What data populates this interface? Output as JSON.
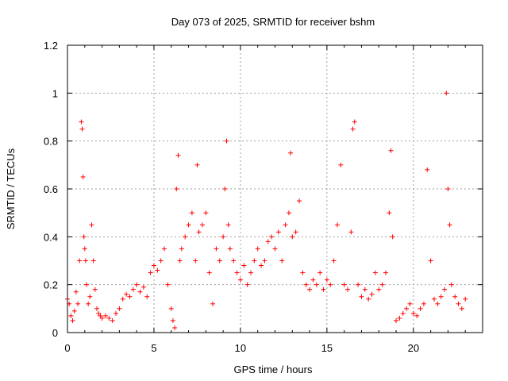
{
  "chart_data": {
    "type": "scatter",
    "title": "Day 073 of 2025, SRMTID for receiver bshm",
    "xlabel": "GPS time / hours",
    "ylabel": "SRMTID / TECUs",
    "xlim": [
      0,
      24
    ],
    "ylim": [
      0,
      1.2
    ],
    "xticks": [
      0,
      5,
      10,
      15,
      20
    ],
    "xtick_labels": [
      "0",
      "5",
      "10",
      "15",
      "20"
    ],
    "yticks": [
      0,
      0.2,
      0.4,
      0.6,
      0.8,
      1.0,
      1.2
    ],
    "ytick_labels": [
      "0",
      "0.2",
      "0.4",
      "0.6",
      "0.8",
      "1",
      "1.2"
    ],
    "grid": true,
    "marker": "plus",
    "color": "#ff0000",
    "series": [
      {
        "name": "SRMTID",
        "x": [
          0.0,
          0.1,
          0.2,
          0.3,
          0.4,
          0.5,
          0.6,
          0.7,
          0.8,
          0.85,
          0.9,
          0.95,
          1.0,
          1.05,
          1.1,
          1.2,
          1.3,
          1.4,
          1.5,
          1.6,
          1.7,
          1.8,
          1.9,
          2.0,
          2.2,
          2.4,
          2.6,
          2.8,
          3.0,
          3.2,
          3.4,
          3.6,
          3.8,
          4.0,
          4.2,
          4.4,
          4.6,
          4.8,
          5.0,
          5.2,
          5.4,
          5.6,
          5.8,
          6.0,
          6.1,
          6.2,
          6.3,
          6.4,
          6.5,
          6.6,
          6.8,
          7.0,
          7.2,
          7.4,
          7.5,
          7.6,
          7.8,
          8.0,
          8.2,
          8.4,
          8.6,
          8.8,
          9.0,
          9.1,
          9.2,
          9.3,
          9.4,
          9.6,
          9.8,
          10.0,
          10.2,
          10.4,
          10.6,
          10.8,
          11.0,
          11.2,
          11.4,
          11.6,
          11.8,
          12.0,
          12.2,
          12.4,
          12.6,
          12.8,
          12.9,
          13.0,
          13.2,
          13.4,
          13.6,
          13.8,
          14.0,
          14.2,
          14.4,
          14.6,
          14.8,
          15.0,
          15.2,
          15.4,
          15.6,
          15.8,
          16.0,
          16.2,
          16.4,
          16.5,
          16.6,
          16.8,
          17.0,
          17.2,
          17.4,
          17.6,
          17.8,
          18.0,
          18.2,
          18.4,
          18.6,
          18.7,
          18.8,
          19.0,
          19.2,
          19.4,
          19.6,
          19.8,
          20.0,
          20.2,
          20.4,
          20.6,
          20.8,
          21.0,
          21.2,
          21.4,
          21.6,
          21.8,
          21.9,
          22.0,
          22.1,
          22.2,
          22.4,
          22.6,
          22.8,
          23.0
        ],
        "y": [
          0.14,
          0.12,
          0.07,
          0.05,
          0.09,
          0.17,
          0.12,
          0.3,
          0.88,
          0.85,
          0.65,
          0.4,
          0.35,
          0.3,
          0.2,
          0.12,
          0.15,
          0.45,
          0.3,
          0.18,
          0.1,
          0.08,
          0.07,
          0.06,
          0.07,
          0.06,
          0.05,
          0.08,
          0.1,
          0.14,
          0.16,
          0.15,
          0.18,
          0.2,
          0.17,
          0.19,
          0.15,
          0.25,
          0.28,
          0.26,
          0.3,
          0.35,
          0.2,
          0.1,
          0.05,
          0.02,
          0.6,
          0.74,
          0.3,
          0.35,
          0.4,
          0.45,
          0.5,
          0.3,
          0.7,
          0.42,
          0.45,
          0.5,
          0.25,
          0.12,
          0.35,
          0.3,
          0.4,
          0.6,
          0.8,
          0.45,
          0.35,
          0.3,
          0.25,
          0.22,
          0.28,
          0.2,
          0.25,
          0.3,
          0.35,
          0.28,
          0.3,
          0.38,
          0.4,
          0.35,
          0.42,
          0.3,
          0.45,
          0.5,
          0.75,
          0.4,
          0.42,
          0.55,
          0.25,
          0.2,
          0.18,
          0.22,
          0.2,
          0.25,
          0.18,
          0.22,
          0.2,
          0.3,
          0.45,
          0.7,
          0.2,
          0.18,
          0.42,
          0.85,
          0.88,
          0.2,
          0.15,
          0.18,
          0.14,
          0.16,
          0.25,
          0.18,
          0.2,
          0.25,
          0.5,
          0.76,
          0.4,
          0.05,
          0.06,
          0.08,
          0.1,
          0.12,
          0.08,
          0.07,
          0.1,
          0.12,
          0.68,
          0.3,
          0.14,
          0.12,
          0.15,
          0.18,
          1.0,
          0.6,
          0.45,
          0.2,
          0.15,
          0.12,
          0.1,
          0.14
        ]
      }
    ]
  }
}
